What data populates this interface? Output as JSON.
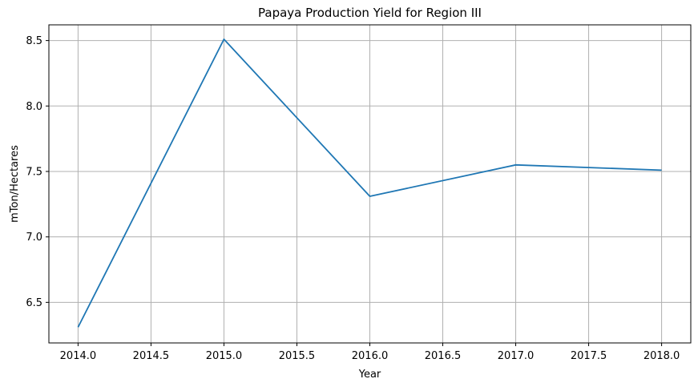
{
  "chart_data": {
    "type": "line",
    "title": "Papaya Production Yield for Region III",
    "xlabel": "Year",
    "ylabel": "mTon/Hectares",
    "x": [
      2014,
      2015,
      2016,
      2017,
      2018
    ],
    "series": [
      {
        "values": [
          6.31,
          8.51,
          7.31,
          7.55,
          7.51
        ],
        "color": "#1f77b4"
      }
    ],
    "xlim": [
      2013.8,
      2018.2
    ],
    "ylim": [
      6.19,
      8.62
    ],
    "xticks": [
      2014.0,
      2014.5,
      2015.0,
      2015.5,
      2016.0,
      2016.5,
      2017.0,
      2017.5,
      2018.0
    ],
    "xtick_labels": [
      "2014.0",
      "2014.5",
      "2015.0",
      "2015.5",
      "2016.0",
      "2016.5",
      "2017.0",
      "2017.5",
      "2018.0"
    ],
    "yticks": [
      6.5,
      7.0,
      7.5,
      8.0,
      8.5
    ],
    "ytick_labels": [
      "6.5",
      "7.0",
      "7.5",
      "8.0",
      "8.5"
    ],
    "grid": true,
    "legend": "none"
  }
}
